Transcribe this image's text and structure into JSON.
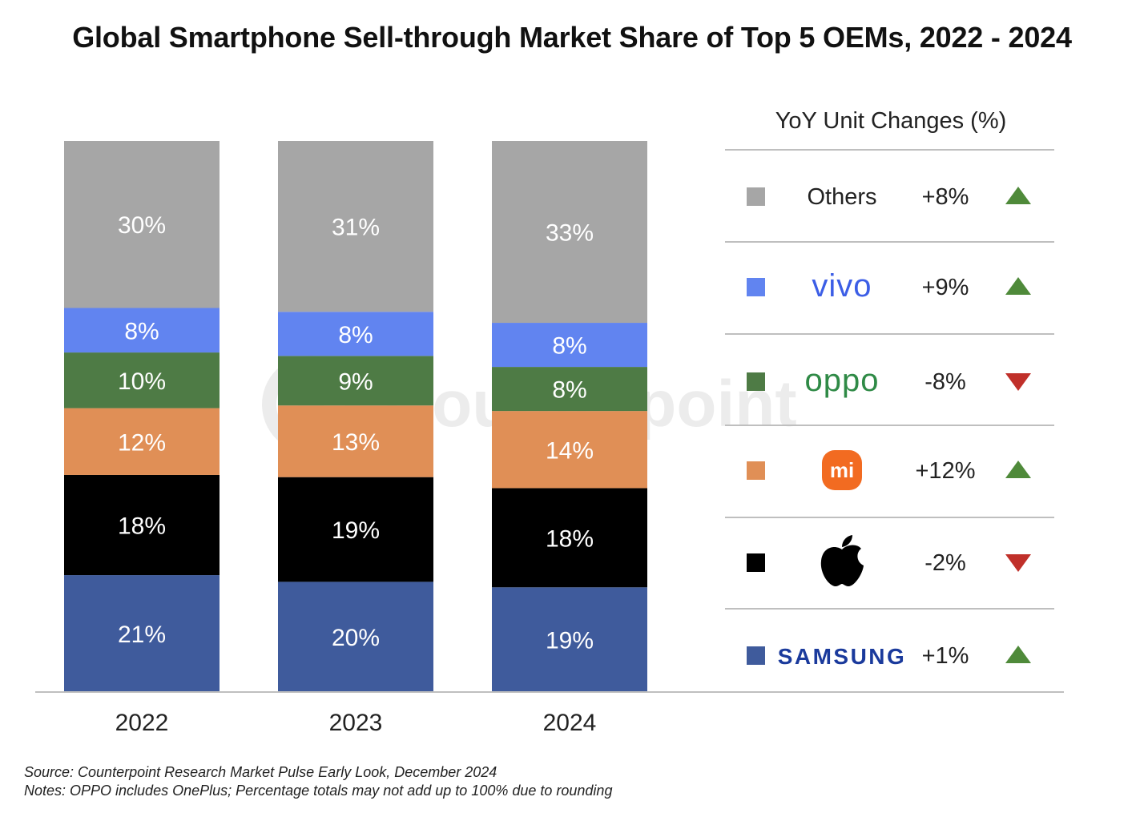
{
  "chart_data": {
    "type": "bar",
    "stacked": true,
    "title": "Global Smartphone Sell-through Market Share of Top 5 OEMs, 2022 - 2024",
    "categories": [
      "2022",
      "2023",
      "2024"
    ],
    "ylim": [
      0,
      100
    ],
    "grid": false,
    "series": [
      {
        "name": "Samsung",
        "color": "#3f5b9c",
        "values": [
          21,
          20,
          19
        ],
        "labels": [
          "21%",
          "20%",
          "19%"
        ],
        "yoy": "+1%",
        "trend": "up",
        "legend_logo": "samsung-logo"
      },
      {
        "name": "Apple",
        "color": "#000000",
        "values": [
          18,
          19,
          18
        ],
        "labels": [
          "18%",
          "19%",
          "18%"
        ],
        "yoy": "-2%",
        "trend": "down",
        "legend_logo": "apple-logo"
      },
      {
        "name": "Xiaomi",
        "color": "#e08f56",
        "values": [
          12,
          13,
          14
        ],
        "labels": [
          "12%",
          "13%",
          "14%"
        ],
        "yoy": "+12%",
        "trend": "up",
        "legend_logo": "mi-logo"
      },
      {
        "name": "OPPO",
        "color": "#4e7b45",
        "values": [
          10,
          9,
          8
        ],
        "labels": [
          "10%",
          "9%",
          "8%"
        ],
        "yoy": "-8%",
        "trend": "down",
        "legend_logo": "oppo-logo"
      },
      {
        "name": "vivo",
        "color": "#6184f0",
        "values": [
          8,
          8,
          8
        ],
        "labels": [
          "8%",
          "8%",
          "8%"
        ],
        "yoy": "+9%",
        "trend": "up",
        "legend_logo": "vivo-logo"
      },
      {
        "name": "Others",
        "color": "#a6a6a6",
        "values": [
          30,
          31,
          33
        ],
        "labels": [
          "30%",
          "31%",
          "33%"
        ],
        "yoy": "+8%",
        "trend": "up",
        "legend_logo": "text"
      }
    ],
    "legend": {
      "title": "YoY Unit Changes (%)",
      "placement": "right",
      "order": [
        "Others",
        "vivo",
        "OPPO",
        "Xiaomi",
        "Apple",
        "Samsung"
      ]
    },
    "trend_colors": {
      "up": "#4f8a3a",
      "down": "#c0302a"
    }
  },
  "watermark": "Counterpoint",
  "logos": {
    "vivo": "vivo",
    "oppo": "oppo",
    "mi": "mi",
    "samsung": "SAMSUNG"
  },
  "notes": {
    "source": "Source: Counterpoint Research Market Pulse Early Look, December 2024",
    "notes": "Notes: OPPO includes OnePlus; Percentage totals may not add up to 100% due to rounding"
  }
}
